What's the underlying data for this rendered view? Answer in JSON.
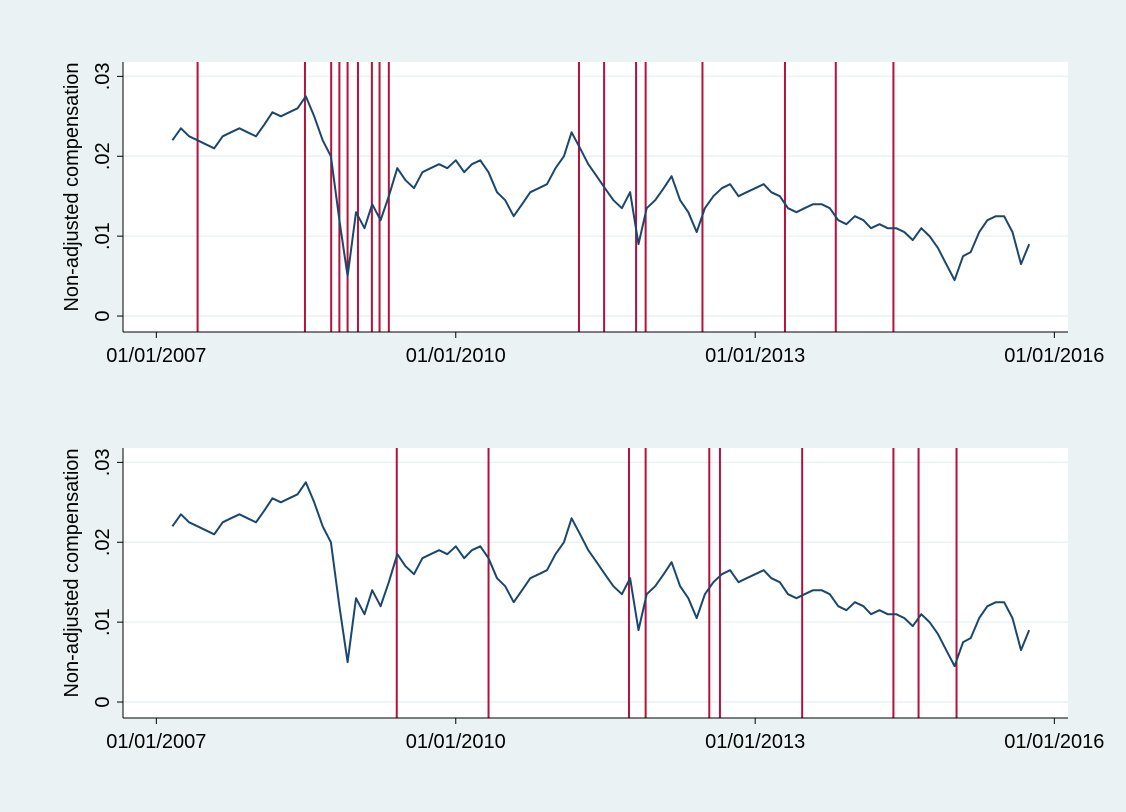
{
  "chart_data": [
    {
      "type": "line",
      "ylabel": "Non-adjusted compensation",
      "x": [
        "2007-03",
        "2007-04",
        "2007-05",
        "2007-06",
        "2007-07",
        "2007-08",
        "2007-09",
        "2007-10",
        "2007-11",
        "2007-12",
        "2008-01",
        "2008-02",
        "2008-03",
        "2008-04",
        "2008-05",
        "2008-06",
        "2008-07",
        "2008-08",
        "2008-09",
        "2008-10",
        "2008-11",
        "2008-12",
        "2009-01",
        "2009-02",
        "2009-03",
        "2009-04",
        "2009-05",
        "2009-06",
        "2009-07",
        "2009-08",
        "2009-09",
        "2009-10",
        "2009-11",
        "2009-12",
        "2010-01",
        "2010-02",
        "2010-03",
        "2010-04",
        "2010-05",
        "2010-06",
        "2010-07",
        "2010-08",
        "2010-09",
        "2010-10",
        "2010-11",
        "2010-12",
        "2011-01",
        "2011-02",
        "2011-03",
        "2011-04",
        "2011-05",
        "2011-06",
        "2011-07",
        "2011-08",
        "2011-09",
        "2011-10",
        "2011-11",
        "2011-12",
        "2012-01",
        "2012-02",
        "2012-03",
        "2012-04",
        "2012-05",
        "2012-06",
        "2012-07",
        "2012-08",
        "2012-09",
        "2012-10",
        "2012-11",
        "2012-12",
        "2013-01",
        "2013-02",
        "2013-03",
        "2013-04",
        "2013-05",
        "2013-06",
        "2013-07",
        "2013-08",
        "2013-09",
        "2013-10",
        "2013-11",
        "2013-12",
        "2014-01",
        "2014-02",
        "2014-03",
        "2014-04",
        "2014-05",
        "2014-06",
        "2014-07",
        "2014-08",
        "2014-09",
        "2014-10",
        "2014-11",
        "2014-12",
        "2015-01",
        "2015-02",
        "2015-03",
        "2015-04",
        "2015-05",
        "2015-06",
        "2015-07",
        "2015-08",
        "2015-09",
        "2015-10"
      ],
      "series": [
        {
          "color": "#1a476f",
          "values": [
            0.022,
            0.0235,
            0.0225,
            0.022,
            0.0215,
            0.021,
            0.0225,
            0.023,
            0.0235,
            0.023,
            0.0225,
            0.024,
            0.0255,
            0.025,
            0.0255,
            0.026,
            0.0275,
            0.025,
            0.022,
            0.02,
            0.012,
            0.005,
            0.013,
            0.011,
            0.014,
            0.012,
            0.015,
            0.0185,
            0.017,
            0.016,
            0.018,
            0.0185,
            0.019,
            0.0185,
            0.0195,
            0.018,
            0.019,
            0.0195,
            0.018,
            0.0155,
            0.0145,
            0.0125,
            0.014,
            0.0155,
            0.016,
            0.0165,
            0.0185,
            0.02,
            0.023,
            0.021,
            0.019,
            0.0175,
            0.016,
            0.0145,
            0.0135,
            0.0155,
            0.009,
            0.0135,
            0.0145,
            0.016,
            0.0175,
            0.0145,
            0.013,
            0.0105,
            0.0135,
            0.015,
            0.016,
            0.0165,
            0.015,
            0.0155,
            0.016,
            0.0165,
            0.0155,
            0.015,
            0.0135,
            0.013,
            0.0135,
            0.014,
            0.014,
            0.0135,
            0.012,
            0.0115,
            0.0125,
            0.012,
            0.011,
            0.0115,
            0.011,
            0.011,
            0.0105,
            0.0095,
            0.011,
            0.01,
            0.0085,
            0.0065,
            0.0045,
            0.0075,
            0.008,
            0.0105,
            0.012,
            0.0125,
            0.0125,
            0.0105,
            0.0065,
            0.009
          ]
        }
      ],
      "events": [
        "2007-06-01",
        "2008-06-28",
        "2008-10-02",
        "2008-11-01",
        "2008-12-01",
        "2009-01-08",
        "2009-02-28",
        "2009-03-28",
        "2009-05-01",
        "2011-03-28",
        "2011-06-28",
        "2011-10-23",
        "2011-11-27",
        "2012-06-22",
        "2013-04-20",
        "2013-10-23",
        "2014-05-22"
      ],
      "event_color": "#b5123b",
      "xlim": [
        "2006-09-01",
        "2016-02-20"
      ],
      "xticks": [
        {
          "value": "2007-01-01",
          "label": "01/01/2007"
        },
        {
          "value": "2010-01-01",
          "label": "01/01/2010"
        },
        {
          "value": "2013-01-01",
          "label": "01/01/2013"
        },
        {
          "value": "2016-01-01",
          "label": "01/01/2016"
        }
      ],
      "ylim": [
        -0.002,
        0.0318
      ],
      "yticks": [
        0,
        {
          "value": 0.01,
          "label": ".01"
        },
        {
          "value": 0.02,
          "label": ".02"
        },
        {
          "value": 0.03,
          "label": ".03"
        }
      ],
      "grid": true
    },
    {
      "type": "line",
      "ylabel": "Non-adjusted compensation",
      "x": [
        "2007-03",
        "2007-04",
        "2007-05",
        "2007-06",
        "2007-07",
        "2007-08",
        "2007-09",
        "2007-10",
        "2007-11",
        "2007-12",
        "2008-01",
        "2008-02",
        "2008-03",
        "2008-04",
        "2008-05",
        "2008-06",
        "2008-07",
        "2008-08",
        "2008-09",
        "2008-10",
        "2008-11",
        "2008-12",
        "2009-01",
        "2009-02",
        "2009-03",
        "2009-04",
        "2009-05",
        "2009-06",
        "2009-07",
        "2009-08",
        "2009-09",
        "2009-10",
        "2009-11",
        "2009-12",
        "2010-01",
        "2010-02",
        "2010-03",
        "2010-04",
        "2010-05",
        "2010-06",
        "2010-07",
        "2010-08",
        "2010-09",
        "2010-10",
        "2010-11",
        "2010-12",
        "2011-01",
        "2011-02",
        "2011-03",
        "2011-04",
        "2011-05",
        "2011-06",
        "2011-07",
        "2011-08",
        "2011-09",
        "2011-10",
        "2011-11",
        "2011-12",
        "2012-01",
        "2012-02",
        "2012-03",
        "2012-04",
        "2012-05",
        "2012-06",
        "2012-07",
        "2012-08",
        "2012-09",
        "2012-10",
        "2012-11",
        "2012-12",
        "2013-01",
        "2013-02",
        "2013-03",
        "2013-04",
        "2013-05",
        "2013-06",
        "2013-07",
        "2013-08",
        "2013-09",
        "2013-10",
        "2013-11",
        "2013-12",
        "2014-01",
        "2014-02",
        "2014-03",
        "2014-04",
        "2014-05",
        "2014-06",
        "2014-07",
        "2014-08",
        "2014-09",
        "2014-10",
        "2014-11",
        "2014-12",
        "2015-01",
        "2015-02",
        "2015-03",
        "2015-04",
        "2015-05",
        "2015-06",
        "2015-07",
        "2015-08",
        "2015-09",
        "2015-10"
      ],
      "series": [
        {
          "color": "#1a476f",
          "values": [
            0.022,
            0.0235,
            0.0225,
            0.022,
            0.0215,
            0.021,
            0.0225,
            0.023,
            0.0235,
            0.023,
            0.0225,
            0.024,
            0.0255,
            0.025,
            0.0255,
            0.026,
            0.0275,
            0.025,
            0.022,
            0.02,
            0.012,
            0.005,
            0.013,
            0.011,
            0.014,
            0.012,
            0.015,
            0.0185,
            0.017,
            0.016,
            0.018,
            0.0185,
            0.019,
            0.0185,
            0.0195,
            0.018,
            0.019,
            0.0195,
            0.018,
            0.0155,
            0.0145,
            0.0125,
            0.014,
            0.0155,
            0.016,
            0.0165,
            0.0185,
            0.02,
            0.023,
            0.021,
            0.019,
            0.0175,
            0.016,
            0.0145,
            0.0135,
            0.0155,
            0.009,
            0.0135,
            0.0145,
            0.016,
            0.0175,
            0.0145,
            0.013,
            0.0105,
            0.0135,
            0.015,
            0.016,
            0.0165,
            0.015,
            0.0155,
            0.016,
            0.0165,
            0.0155,
            0.015,
            0.0135,
            0.013,
            0.0135,
            0.014,
            0.014,
            0.0135,
            0.012,
            0.0115,
            0.0125,
            0.012,
            0.011,
            0.0115,
            0.011,
            0.011,
            0.0105,
            0.0095,
            0.011,
            0.01,
            0.0085,
            0.0065,
            0.0045,
            0.0075,
            0.008,
            0.0105,
            0.012,
            0.0125,
            0.0125,
            0.0105,
            0.0065,
            0.009
          ]
        }
      ],
      "events": [
        "2009-05-30",
        "2010-05-01",
        "2011-09-27",
        "2011-11-27",
        "2012-07-17",
        "2012-08-25",
        "2013-06-22",
        "2014-05-22",
        "2014-08-22",
        "2015-01-08"
      ],
      "event_color": "#b5123b",
      "xlim": [
        "2006-09-01",
        "2016-02-20"
      ],
      "xticks": [
        {
          "value": "2007-01-01",
          "label": "01/01/2007"
        },
        {
          "value": "2010-01-01",
          "label": "01/01/2010"
        },
        {
          "value": "2013-01-01",
          "label": "01/01/2013"
        },
        {
          "value": "2016-01-01",
          "label": "01/01/2016"
        }
      ],
      "ylim": [
        -0.002,
        0.0318
      ],
      "yticks": [
        0,
        {
          "value": 0.01,
          "label": ".01"
        },
        {
          "value": 0.02,
          "label": ".02"
        },
        {
          "value": 0.03,
          "label": ".03"
        }
      ],
      "grid": true
    }
  ]
}
